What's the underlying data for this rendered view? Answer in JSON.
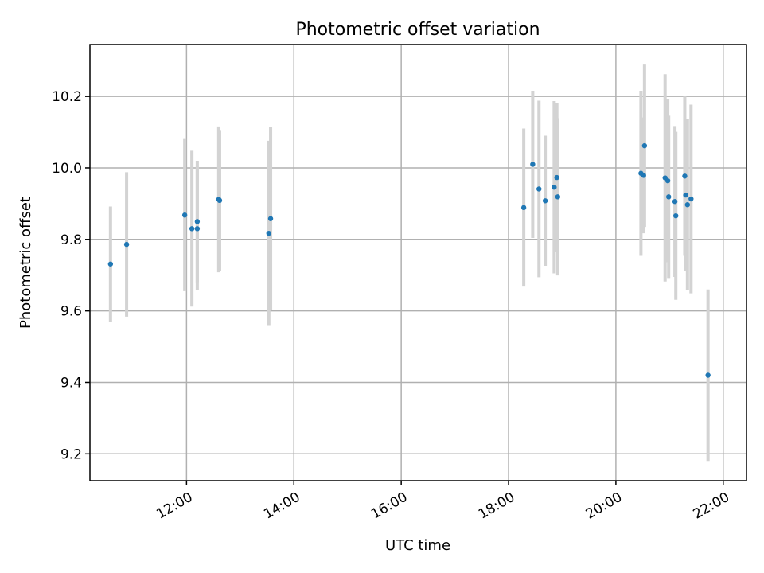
{
  "chart_data": {
    "type": "scatter",
    "title": "Photometric offset variation",
    "xlabel": "UTC time",
    "ylabel": "Photometric offset",
    "x_tick_labels": [
      "12:00",
      "14:00",
      "16:00",
      "18:00",
      "20:00",
      "22:00"
    ],
    "y_tick_labels": [
      "9.2",
      "9.4",
      "9.6",
      "9.8",
      "10.0",
      "10.2"
    ],
    "xlim": [
      "10:12",
      "22:26"
    ],
    "ylim": [
      9.125,
      10.345
    ],
    "grid": true,
    "marker_color": "#1f77b4",
    "errorbar_color": "#d3d3d3",
    "points": [
      {
        "time": "10:35",
        "y": 9.731,
        "yerr": 0.161
      },
      {
        "time": "10:53",
        "y": 9.786,
        "yerr": 0.202
      },
      {
        "time": "11:58",
        "y": 9.868,
        "yerr": 0.213
      },
      {
        "time": "12:06",
        "y": 9.83,
        "yerr": 0.218
      },
      {
        "time": "12:12",
        "y": 9.85,
        "yerr": 0.17
      },
      {
        "time": "12:12",
        "y": 9.83,
        "yerr": 0.173
      },
      {
        "time": "12:36",
        "y": 9.912,
        "yerr": 0.204
      },
      {
        "time": "12:37",
        "y": 9.909,
        "yerr": 0.197
      },
      {
        "time": "13:32",
        "y": 9.817,
        "yerr": 0.259
      },
      {
        "time": "13:34",
        "y": 9.858,
        "yerr": 0.256
      },
      {
        "time": "18:17",
        "y": 9.889,
        "yerr": 0.221
      },
      {
        "time": "18:27",
        "y": 10.01,
        "yerr": 0.206
      },
      {
        "time": "18:34",
        "y": 9.941,
        "yerr": 0.247
      },
      {
        "time": "18:41",
        "y": 9.908,
        "yerr": 0.182
      },
      {
        "time": "18:51",
        "y": 9.946,
        "yerr": 0.241
      },
      {
        "time": "18:54",
        "y": 9.973,
        "yerr": 0.209
      },
      {
        "time": "18:55",
        "y": 9.919,
        "yerr": 0.22
      },
      {
        "time": "20:28",
        "y": 9.985,
        "yerr": 0.231
      },
      {
        "time": "20:31",
        "y": 9.979,
        "yerr": 0.162
      },
      {
        "time": "20:32",
        "y": 10.062,
        "yerr": 0.227
      },
      {
        "time": "20:55",
        "y": 9.972,
        "yerr": 0.29
      },
      {
        "time": "20:58",
        "y": 9.964,
        "yerr": 0.228
      },
      {
        "time": "20:59",
        "y": 9.919,
        "yerr": 0.227
      },
      {
        "time": "21:06",
        "y": 9.906,
        "yerr": 0.211
      },
      {
        "time": "21:07",
        "y": 9.866,
        "yerr": 0.235
      },
      {
        "time": "21:17",
        "y": 9.977,
        "yerr": 0.223
      },
      {
        "time": "21:18",
        "y": 9.924,
        "yerr": 0.213
      },
      {
        "time": "21:20",
        "y": 9.897,
        "yerr": 0.24
      },
      {
        "time": "21:24",
        "y": 9.913,
        "yerr": 0.264
      },
      {
        "time": "21:43",
        "y": 9.42,
        "yerr": 0.24
      }
    ]
  }
}
